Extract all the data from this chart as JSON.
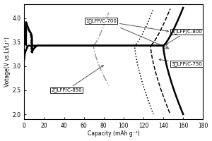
{
  "title": "",
  "xlabel": "Capacity (mAh g⁻¹)",
  "ylabel": "Votage(V vs.Li/Li⁺)",
  "xlim": [
    0,
    180
  ],
  "ylim": [
    1.9,
    4.3
  ],
  "xticks": [
    0,
    20,
    40,
    60,
    80,
    100,
    120,
    140,
    160,
    180
  ],
  "yticks": [
    2.0,
    2.5,
    3.0,
    3.5,
    4.0
  ],
  "background_color": "#ffffff",
  "curve1_label": "1、LFP/C-700",
  "curve2_label": "2、LFP/C-850",
  "curve3_label": "3、LFP/C-750",
  "curve4_label": "4、LFP/C-800",
  "plateau_v": 3.43
}
